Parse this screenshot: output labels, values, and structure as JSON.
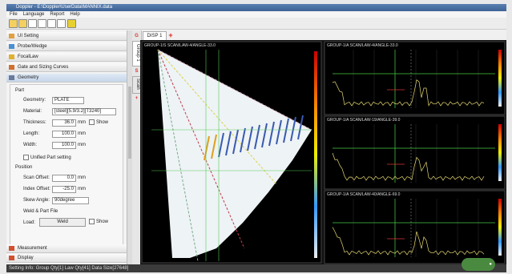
{
  "window": {
    "title": "Doppler - E:\\Doppler\\UserData\\MANNIX.data"
  },
  "menu": [
    "File",
    "Language",
    "Report",
    "Help"
  ],
  "accordion": [
    "UI Setting",
    "Probe/Wedge",
    "FocalLaw",
    "Gate and Sizing Curves",
    "Geometry"
  ],
  "part": {
    "heading": "Part",
    "fields": [
      {
        "label": "Geometry:",
        "value": "PLATE"
      },
      {
        "label": "Material:",
        "value": "[steel][5.9/3.2][T3240]"
      },
      {
        "label": "Thickness:",
        "value": "36.0",
        "unit": "mm",
        "check": "Show"
      },
      {
        "label": "Length:",
        "value": "100.0",
        "unit": "mm"
      },
      {
        "label": "Width:",
        "value": "100.0",
        "unit": "mm"
      }
    ],
    "unified": "Unified Part setting"
  },
  "position": {
    "heading": "Position",
    "fields": [
      {
        "label": "Scan Offset:",
        "value": "0.0",
        "unit": "mm"
      },
      {
        "label": "Index Offset:",
        "value": "-25.0",
        "unit": "mm"
      },
      {
        "label": "Skew Angle:",
        "value": "90degree"
      }
    ]
  },
  "weld": {
    "heading": "Weld & Part File",
    "label": "Load:",
    "button": "Weld",
    "check": "Show"
  },
  "bottom_accordion": [
    "Measurement",
    "Display"
  ],
  "side_tabs": [
    "Group 1",
    "Scan"
  ],
  "display_tab": "DISP 1",
  "sscan_header": "GROUP-1/S SCAN/LAW-4/ANGLE-33.0",
  "ascan_headers": [
    "GROUP-1/A SCAN/LAW-4/ANGLE-33.0",
    "GROUP-1/A SCAN/LAW-19/ANGLE-39.0",
    "GROUP-1/A SCAN/LAW-40/ANGLE-69.0"
  ],
  "status": "Setting Info: Group Qty[1] Law Qty[41] Data Size[27648]"
}
